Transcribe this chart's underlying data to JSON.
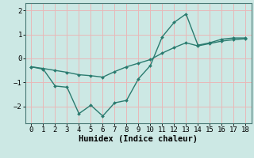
{
  "line1_x": [
    0,
    1,
    2,
    3,
    4,
    5,
    6,
    7,
    8,
    9,
    10,
    11,
    12,
    13,
    14,
    15,
    16,
    17,
    18
  ],
  "line1_y": [
    -0.35,
    -0.45,
    -1.15,
    -1.2,
    -2.3,
    -1.95,
    -2.4,
    -1.85,
    -1.75,
    -0.85,
    -0.3,
    0.9,
    1.5,
    1.85,
    0.55,
    0.65,
    0.8,
    0.85,
    0.85
  ],
  "line2_x": [
    0,
    1,
    2,
    3,
    4,
    5,
    6,
    7,
    8,
    9,
    10,
    11,
    12,
    13,
    14,
    15,
    16,
    17,
    18
  ],
  "line2_y": [
    -0.35,
    -0.42,
    -0.5,
    -0.58,
    -0.68,
    -0.72,
    -0.78,
    -0.55,
    -0.35,
    -0.2,
    -0.05,
    0.22,
    0.45,
    0.65,
    0.52,
    0.62,
    0.72,
    0.78,
    0.82
  ],
  "line_color": "#2a7b6f",
  "bg_color": "#cce8e4",
  "grid_color": "#e8b8b8",
  "xlabel": "Humidex (Indice chaleur)",
  "xlim": [
    -0.5,
    18.5
  ],
  "ylim": [
    -2.7,
    2.3
  ],
  "yticks": [
    -2,
    -1,
    0,
    1,
    2
  ],
  "xticks": [
    0,
    1,
    2,
    3,
    4,
    5,
    6,
    7,
    8,
    9,
    10,
    11,
    12,
    13,
    14,
    15,
    16,
    17,
    18
  ],
  "xlabel_fontsize": 7.5,
  "tick_fontsize": 6.5,
  "linewidth": 1.0,
  "marker": "D",
  "markersize": 2.0
}
